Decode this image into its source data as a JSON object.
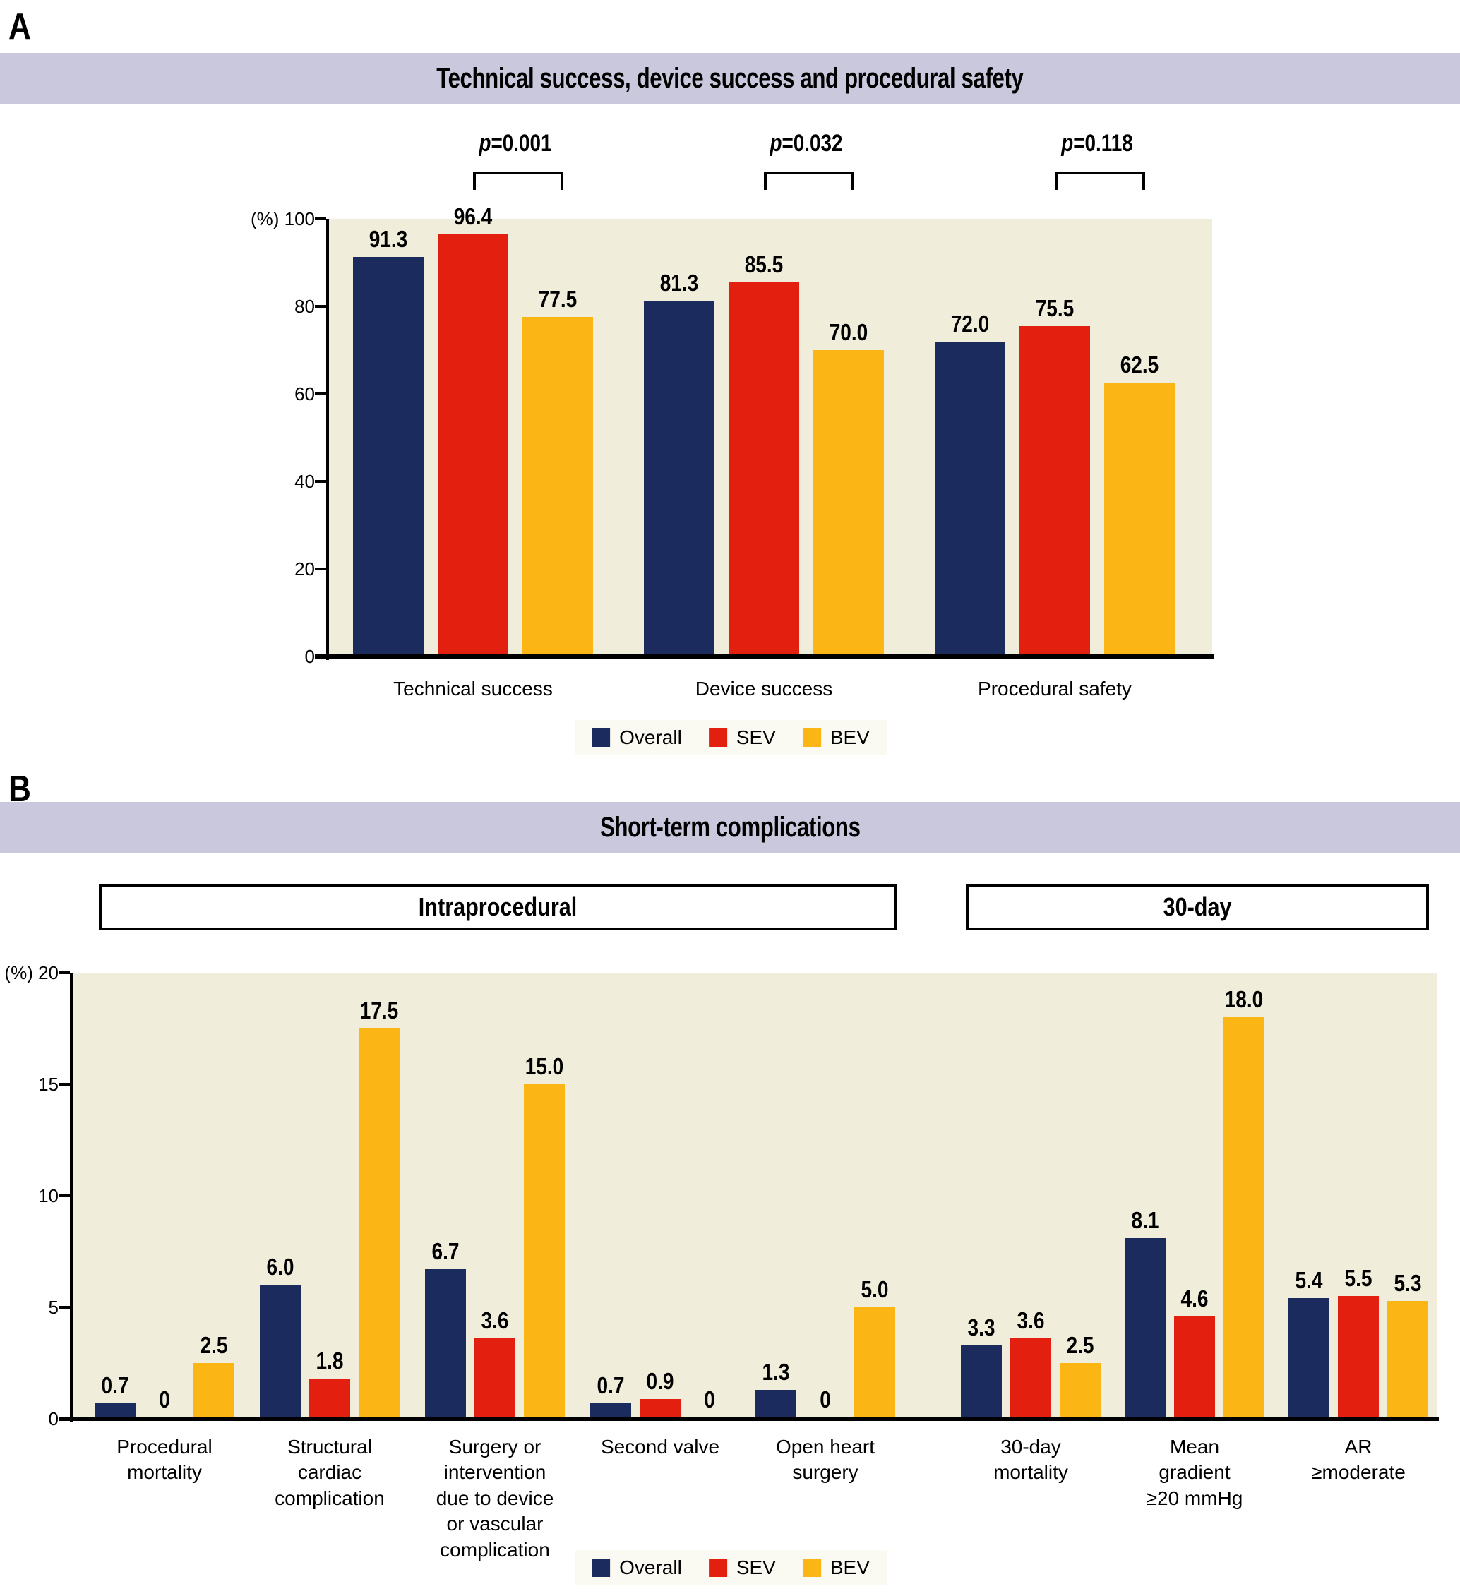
{
  "figure_labels": {
    "panel_a": "A",
    "panel_b": "B"
  },
  "colors": {
    "overall": "#1c2b5e",
    "sev": "#e3200f",
    "bev": "#fbb616",
    "plot_background": "#f0edda",
    "band_background": "#c9c8dd",
    "legend_background": "#fbfaf2",
    "axis": "#000000"
  },
  "legend": {
    "items": [
      {
        "label": "Overall",
        "color": "#1c2b5e"
      },
      {
        "label": "SEV",
        "color": "#e3200f"
      },
      {
        "label": "BEV",
        "color": "#fbb616"
      }
    ]
  },
  "chart_data": [
    {
      "id": "panel_a",
      "type": "bar",
      "title": "Technical success, device success and procedural safety",
      "categories": [
        "Technical success",
        "Device success",
        "Procedural safety"
      ],
      "series": [
        {
          "name": "Overall",
          "color": "#1c2b5e",
          "values": [
            91.3,
            81.3,
            72.0
          ]
        },
        {
          "name": "SEV",
          "color": "#e3200f",
          "values": [
            96.4,
            85.5,
            75.5
          ]
        },
        {
          "name": "BEV",
          "color": "#fbb616",
          "values": [
            77.5,
            70.0,
            62.5
          ]
        }
      ],
      "p_values": [
        {
          "label": "p=0.001",
          "category": "Technical success",
          "between": [
            "SEV",
            "BEV"
          ]
        },
        {
          "label": "p=0.032",
          "category": "Device success",
          "between": [
            "SEV",
            "BEV"
          ]
        },
        {
          "label": "p=0.118",
          "category": "Procedural safety",
          "between": [
            "SEV",
            "BEV"
          ]
        }
      ],
      "ylabel": "(%)",
      "ylim": [
        0,
        100
      ],
      "yticks": [
        100,
        80,
        60,
        40,
        20,
        0
      ],
      "grid": false,
      "legend_position": "bottom"
    },
    {
      "id": "panel_b",
      "type": "bar",
      "title": "Short-term complications",
      "sections": [
        {
          "label": "Intraprocedural",
          "categories": [
            "Procedural mortality",
            "Structural cardiac complication",
            "Surgery or intervention due to device or vascular complication",
            "Second valve",
            "Open heart surgery"
          ]
        },
        {
          "label": "30-day",
          "categories": [
            "30-day mortality",
            "Mean gradient ≥20 mmHg",
            "AR ≥moderate"
          ]
        }
      ],
      "categories": [
        "Procedural mortality",
        "Structural cardiac complication",
        "Surgery or intervention due to device or vascular complication",
        "Second valve",
        "Open heart surgery",
        "30-day mortality",
        "Mean gradient ≥20 mmHg",
        "AR ≥moderate"
      ],
      "category_display_lines": [
        [
          "Procedural",
          "mortality"
        ],
        [
          "Structural",
          "cardiac",
          "complication"
        ],
        [
          "Surgery or",
          "intervention",
          "due to device",
          "or vascular",
          "complication"
        ],
        [
          "Second valve"
        ],
        [
          "Open heart",
          "surgery"
        ],
        [
          "30-day",
          "mortality"
        ],
        [
          "Mean",
          "gradient",
          "≥20 mmHg"
        ],
        [
          "AR",
          "≥moderate"
        ]
      ],
      "series": [
        {
          "name": "Overall",
          "color": "#1c2b5e",
          "values": [
            0.7,
            6.0,
            6.7,
            0.7,
            1.3,
            3.3,
            8.1,
            5.4
          ]
        },
        {
          "name": "SEV",
          "color": "#e3200f",
          "values": [
            0,
            1.8,
            3.6,
            0.9,
            0,
            3.6,
            4.6,
            5.5
          ]
        },
        {
          "name": "BEV",
          "color": "#fbb616",
          "values": [
            2.5,
            17.5,
            15.0,
            0,
            5.0,
            2.5,
            18.0,
            5.3
          ]
        }
      ],
      "zero_label": "0",
      "ylabel": "(%)",
      "ylim": [
        0,
        20
      ],
      "yticks": [
        20,
        15,
        10,
        5,
        0
      ],
      "grid": false,
      "legend_position": "bottom"
    }
  ]
}
